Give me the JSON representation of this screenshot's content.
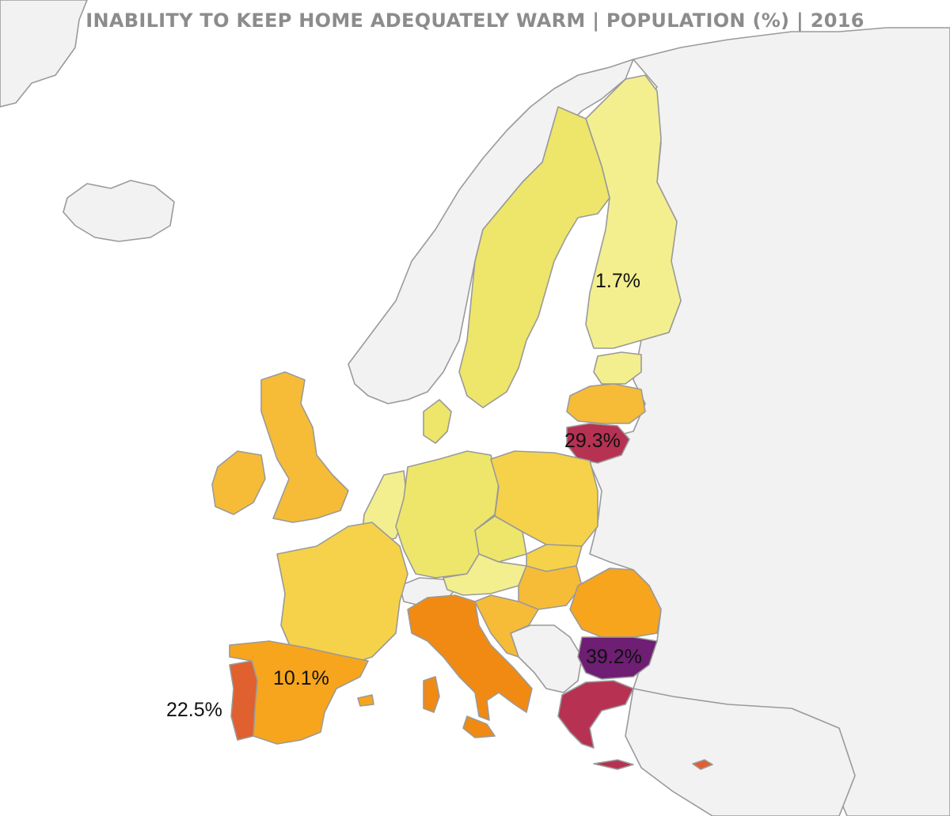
{
  "title": "INABILITY TO KEEP HOME ADEQUATELY WARM | POPULATION (%) | 2016",
  "labels": {
    "finland": "1.7%",
    "lithuania": "29.3%",
    "bulgaria": "39.2%",
    "spain": "10.1%",
    "portugal": "22.5%"
  },
  "colors": {
    "background": "#ffffff",
    "non_eu": "#f2f2f2",
    "border": "#9a9a9a",
    "title": "#8c8c8c",
    "scale_lowest": "#f3ef8f",
    "scale_low": "#ede66a",
    "scale_low_mid": "#f5d24a",
    "scale_mid": "#f6bc38",
    "scale_mid_high": "#f7a51d",
    "scale_high": "#f18a12",
    "scale_higher": "#e0602f",
    "scale_very_high": "#b73252",
    "scale_highest": "#6e1e73"
  }
}
